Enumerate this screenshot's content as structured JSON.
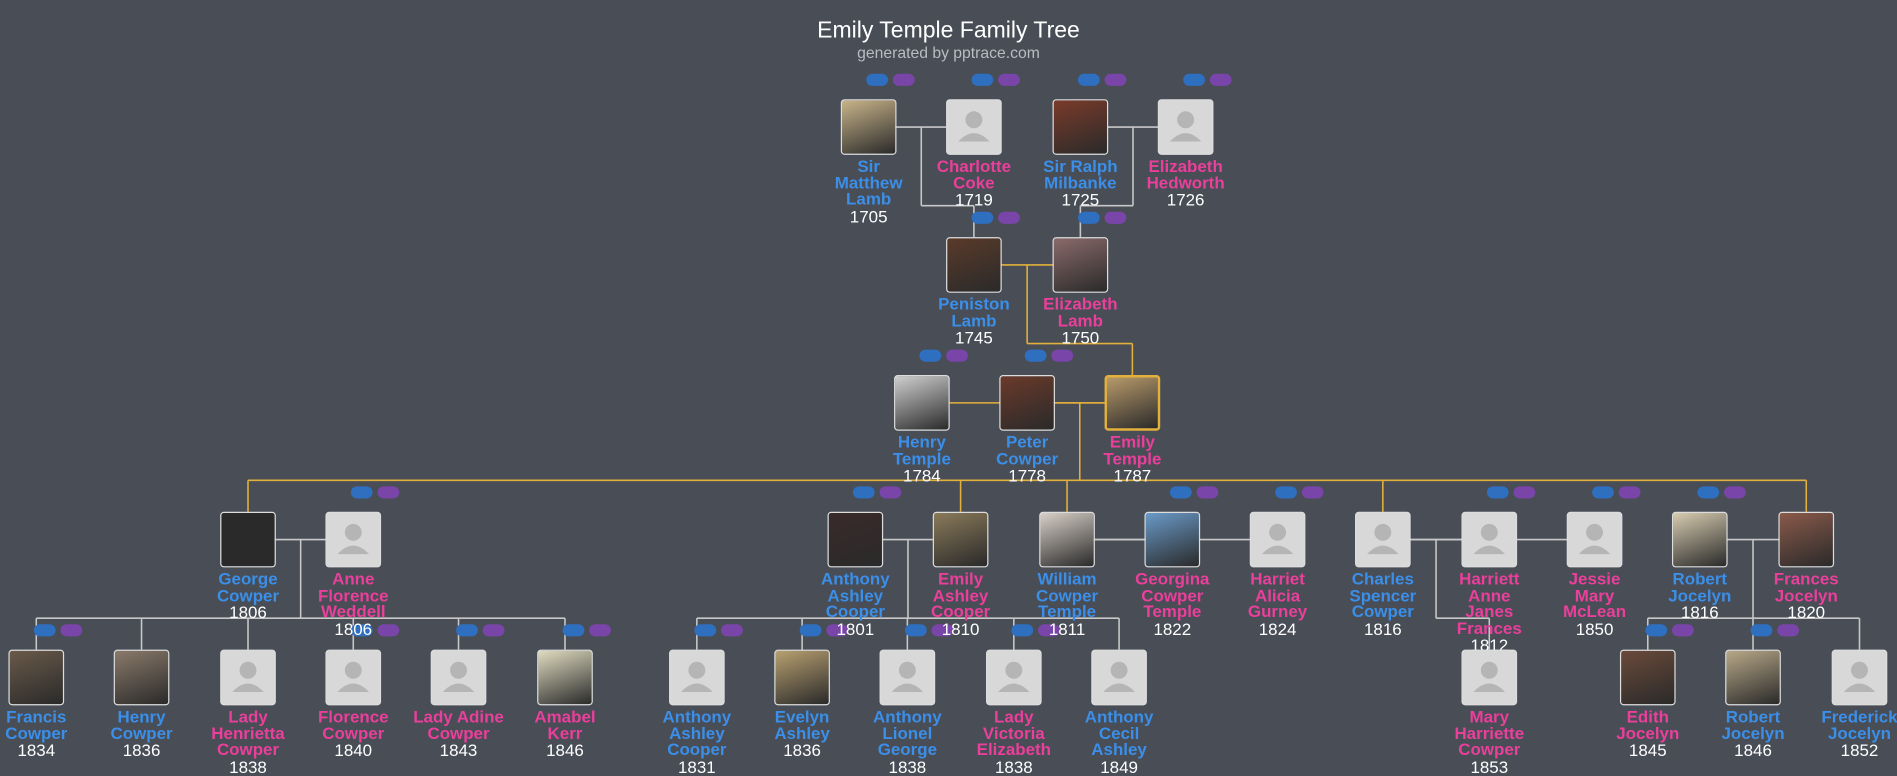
{
  "header": {
    "title": "Emily Temple Family Tree",
    "subtitle": "generated by pptrace.com"
  },
  "people": [
    {
      "name": "Sir Matthew Lamb",
      "year": 1705,
      "gender": "male"
    },
    {
      "name": "Charlotte Coke",
      "year": 1719,
      "gender": "female"
    },
    {
      "name": "Sir Ralph Milbanke",
      "year": 1725,
      "gender": "male"
    },
    {
      "name": "Elizabeth Hedworth",
      "year": 1726,
      "gender": "female"
    },
    {
      "name": "Peniston Lamb",
      "year": 1745,
      "gender": "male"
    },
    {
      "name": "Elizabeth Lamb",
      "year": 1750,
      "gender": "female"
    },
    {
      "name": "Henry Temple",
      "year": 1784,
      "gender": "male"
    },
    {
      "name": "Peter Cowper",
      "year": 1778,
      "gender": "male"
    },
    {
      "name": "Emily Temple",
      "year": 1787,
      "gender": "female"
    },
    {
      "name": "George Cowper",
      "year": 1806,
      "gender": "male"
    },
    {
      "name": "Anne Florence Weddell",
      "year": 1806,
      "gender": "female"
    },
    {
      "name": "Anthony Ashley Cooper",
      "year": 1801,
      "gender": "male"
    },
    {
      "name": "Emily Ashley Cooper",
      "year": 1810,
      "gender": "female"
    },
    {
      "name": "William Cowper Temple",
      "year": 1811,
      "gender": "male"
    },
    {
      "name": "Georgina Cowper Temple",
      "year": 1822,
      "gender": "female"
    },
    {
      "name": "Harriet Alicia Gurney",
      "year": 1824,
      "gender": "female"
    },
    {
      "name": "Charles Spencer Cowper",
      "year": 1816,
      "gender": "male"
    },
    {
      "name": "Harriett Anne Janes Frances",
      "year": 1812,
      "gender": "female"
    },
    {
      "name": "Jessie Mary McLean",
      "year": 1850,
      "gender": "female"
    },
    {
      "name": "Robert Jocelyn",
      "year": 1816,
      "gender": "male"
    },
    {
      "name": "Frances Jocelyn",
      "year": 1820,
      "gender": "female"
    },
    {
      "name": "Francis Cowper",
      "year": 1834,
      "gender": "male"
    },
    {
      "name": "Henry Cowper",
      "year": 1836,
      "gender": "male"
    },
    {
      "name": "Lady Henrietta Cowper",
      "year": 1838,
      "gender": "female"
    },
    {
      "name": "Florence Cowper",
      "year": 1840,
      "gender": "female"
    },
    {
      "name": "Lady Adine Cowper",
      "year": 1843,
      "gender": "female"
    },
    {
      "name": "Amabel Kerr",
      "year": 1846,
      "gender": "female"
    },
    {
      "name": "Anthony Ashley Cooper",
      "year": 1831,
      "gender": "male"
    },
    {
      "name": "Evelyn Ashley",
      "year": 1836,
      "gender": "male"
    },
    {
      "name": "Anthony Lionel George",
      "year": 1838,
      "gender": "male"
    },
    {
      "name": "Lady Victoria Elizabeth",
      "year": 1838,
      "gender": "female"
    },
    {
      "name": "Anthony Cecil Ashley",
      "year": 1849,
      "gender": "male"
    },
    {
      "name": "Mary Harriette Cowper",
      "year": 1853,
      "gender": "female"
    },
    {
      "name": "Edith Jocelyn",
      "year": 1845,
      "gender": "female"
    },
    {
      "name": "Robert Jocelyn",
      "year": 1846,
      "gender": "male"
    },
    {
      "name": "Frederick Jocelyn",
      "year": 1852,
      "gender": "male"
    }
  ]
}
